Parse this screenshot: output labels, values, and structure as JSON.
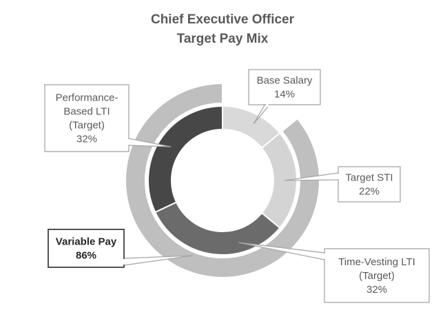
{
  "chart_data": {
    "type": "donut",
    "title": [
      "Chief Executive Officer",
      "Target Pay Mix"
    ],
    "inner_ring": {
      "slices": [
        {
          "name": "Base Salary",
          "value": 14,
          "label_lines": [
            "Base Salary",
            "14%"
          ],
          "color": "#d9d9d9"
        },
        {
          "name": "Target STI",
          "value": 22,
          "label_lines": [
            "Target STI",
            "22%"
          ],
          "color": "#d4d4d4"
        },
        {
          "name": "Time-Vesting LTI (Target)",
          "value": 32,
          "label_lines": [
            "Time-Vesting LTI",
            "(Target)",
            "32%"
          ],
          "color": "#6b6b6b"
        },
        {
          "name": "Performance-Based LTI (Target)",
          "value": 32,
          "label_lines": [
            "Performance-",
            "Based LTI",
            "(Target)",
            "32%"
          ],
          "color": "#474747"
        }
      ]
    },
    "outer_ring": {
      "slices": [
        {
          "name": "Base Salary",
          "value": 14,
          "color": "#ffffff"
        },
        {
          "name": "Variable Pay",
          "value": 86,
          "label_lines": [
            "Variable Pay",
            "86%"
          ],
          "color": "#bfbfbf"
        }
      ]
    }
  }
}
